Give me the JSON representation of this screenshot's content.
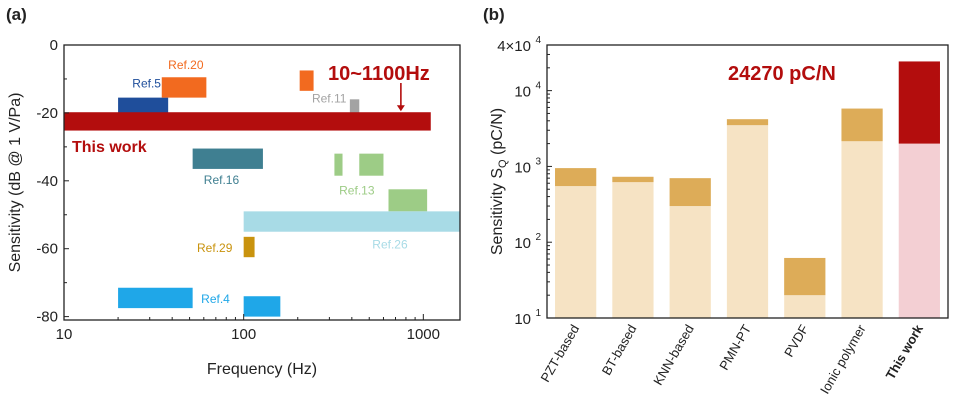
{
  "panels": [
    {
      "label": "(a)"
    },
    {
      "label": "(b)"
    }
  ],
  "chart_data": [
    {
      "type": "bar",
      "ylabel": "Sensitivity (dB @ 1 V/Pa)",
      "xlabel": "Frequency (Hz)",
      "xscale": "log",
      "xlim": [
        10,
        1600
      ],
      "ylim": [
        -81,
        0
      ],
      "xticks": [
        {
          "v": 10,
          "t": "10"
        },
        {
          "v": 100,
          "t": "100"
        },
        {
          "v": 1000,
          "t": "1000"
        }
      ],
      "yticks": [
        {
          "v": 0,
          "t": "0"
        },
        {
          "v": -20,
          "t": "-20"
        },
        {
          "v": -40,
          "t": "-40"
        },
        {
          "v": -60,
          "t": "-60"
        },
        {
          "v": -80,
          "t": "-80"
        }
      ],
      "highlight": {
        "label": "This work",
        "range_label": "10~1100Hz",
        "x": [
          10,
          1100
        ],
        "y": [
          -19.8,
          -25.2
        ],
        "color": "#b30d0d",
        "arrow_x": 750
      },
      "refs": [
        {
          "name": "Ref.5",
          "x": [
            20,
            38
          ],
          "y": [
            -15.5,
            -21.5
          ],
          "color": "#1f4e9b",
          "label_x": 24,
          "label_y": -12.5
        },
        {
          "name": "Ref.20",
          "x": [
            35,
            62
          ],
          "y": [
            -9.5,
            -15.5
          ],
          "color": "#f26a1f",
          "label_x": 38,
          "label_y": -7
        },
        {
          "name": "Ref.11",
          "x": [
            390,
            440
          ],
          "y": [
            -16,
            -22.5
          ],
          "color": "#a3a3a3",
          "label_x": 240,
          "label_y": -17
        },
        {
          "name": "",
          "x": [
            205,
            245
          ],
          "y": [
            -7.5,
            -13.5
          ],
          "color": "#f26a1f",
          "label_x": 0,
          "label_y": 0
        },
        {
          "name": "Ref.16",
          "x": [
            52,
            128
          ],
          "y": [
            -30.5,
            -36.5
          ],
          "color": "#3f7f91",
          "label_x": 60,
          "label_y": -41
        },
        {
          "name": "Ref.13",
          "x": [
            440,
            600
          ],
          "y": [
            -32,
            -38.5
          ],
          "color": "#9dcc86",
          "label_x": 340,
          "label_y": -44
        },
        {
          "name": "",
          "x": [
            320,
            355
          ],
          "y": [
            -32,
            -38.5
          ],
          "color": "#9dcc86",
          "label_x": 0,
          "label_y": 0
        },
        {
          "name": "",
          "x": [
            640,
            1050
          ],
          "y": [
            -42.5,
            -49
          ],
          "color": "#9dcc86",
          "label_x": 0,
          "label_y": 0
        },
        {
          "name": "Ref.26",
          "x": [
            100,
            1600
          ],
          "y": [
            -49,
            -55
          ],
          "color": "#a8dbe6",
          "label_x": 520,
          "label_y": -60,
          "label_color": "#a8dbe6"
        },
        {
          "name": "Ref.29",
          "x": [
            100,
            115
          ],
          "y": [
            -56.5,
            -62.5
          ],
          "color": "#c9930e",
          "label_x": 55,
          "label_y": -61
        },
        {
          "name": "Ref.4",
          "x": [
            20,
            52
          ],
          "y": [
            -71.5,
            -77.5
          ],
          "color": "#1fa7e8",
          "label_x": 58,
          "label_y": -76
        },
        {
          "name": "",
          "x": [
            100,
            160
          ],
          "y": [
            -74,
            -80
          ],
          "color": "#1fa7e8",
          "label_x": 0,
          "label_y": 0
        }
      ]
    },
    {
      "type": "bar",
      "ylabel": "Sensitivity S",
      "ylabel_sub": "Q",
      "ylabel_unit": " (pC/N)",
      "yscale": "log",
      "ylim": [
        10,
        40000
      ],
      "yticks": [
        {
          "v": 10,
          "base": "10",
          "exp": "1"
        },
        {
          "v": 100,
          "base": "10",
          "exp": "2"
        },
        {
          "v": 1000,
          "base": "10",
          "exp": "3"
        },
        {
          "v": 10000,
          "base": "10",
          "exp": "4"
        },
        {
          "v": 40000,
          "base": "4×10",
          "exp": "4"
        }
      ],
      "annotation": "24270 pC/N",
      "categories": [
        "PZT-based",
        "BT-based",
        "KNN-based",
        "PMN-PT",
        "PVDF",
        "Ionic polymer",
        "This work"
      ],
      "lower": [
        550,
        620,
        300,
        3500,
        20,
        2150,
        2000
      ],
      "upper": [
        950,
        730,
        700,
        4200,
        62,
        5800,
        24270
      ],
      "colors": {
        "lower": "#f6e3c4",
        "upper": "#ddac58",
        "highlight_lower": "#f3cfd3",
        "highlight_upper": "#b30d0d"
      },
      "highlight_index": 6
    }
  ]
}
